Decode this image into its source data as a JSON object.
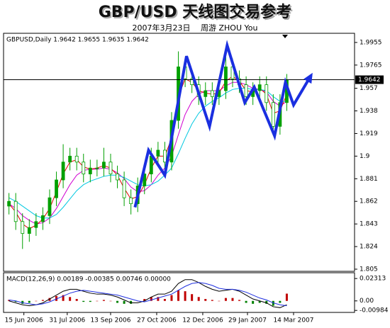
{
  "chart_data": {
    "type": "candlestick",
    "title": "GBP/USD 天线图交易参考",
    "subtitle": "2007年3月23日　 周游 ZHOU You",
    "header": "GBPUSD,Daily 1.9642 1.9655 1.9635 1.9642",
    "xlim": [
      -4,
      255
    ],
    "xticks": [
      {
        "value": 11,
        "label": "15 Jun 2006"
      },
      {
        "value": 43,
        "label": "31 Jul 2006"
      },
      {
        "value": 75,
        "label": "13 Sep 2006"
      },
      {
        "value": 109,
        "label": "27 Oct 2006"
      },
      {
        "value": 143,
        "label": "12 Dec 2006"
      },
      {
        "value": 176,
        "label": "29 Jan 2007"
      },
      {
        "value": 210,
        "label": "14 Mar 2007"
      }
    ],
    "ylim": [
      1.8032,
      2.0032
    ],
    "yticks": [
      1.9955,
      1.9765,
      1.957,
      1.938,
      1.919,
      1.9,
      1.881,
      1.862,
      1.843,
      1.824,
      1.805
    ],
    "last_price": 1.9642,
    "up_color": "#00a000",
    "down_color": "#ffffff",
    "x": [
      0,
      5,
      10,
      15,
      20,
      25,
      30,
      35,
      40,
      45,
      50,
      55,
      60,
      65,
      70,
      75,
      80,
      85,
      90,
      95,
      100,
      105,
      110,
      115,
      120,
      125,
      130,
      135,
      140,
      145,
      150,
      155,
      160,
      165,
      170,
      175,
      180,
      185,
      190,
      195,
      200,
      205
    ],
    "open": [
      1.858,
      1.862,
      1.845,
      1.835,
      1.84,
      1.845,
      1.85,
      1.865,
      1.88,
      1.895,
      1.9,
      1.895,
      1.885,
      1.89,
      1.89,
      1.895,
      1.885,
      1.88,
      1.865,
      1.86,
      1.875,
      1.885,
      1.9,
      1.905,
      1.895,
      1.93,
      1.975,
      1.965,
      1.96,
      1.95,
      1.955,
      1.95,
      1.955,
      1.975,
      1.965,
      1.96,
      1.95,
      1.955,
      1.96,
      1.945,
      1.925,
      1.945
    ],
    "high": [
      1.869,
      1.869,
      1.852,
      1.847,
      1.852,
      1.857,
      1.872,
      1.887,
      1.91,
      1.907,
      1.907,
      1.902,
      1.897,
      1.897,
      1.907,
      1.902,
      1.892,
      1.887,
      1.872,
      1.882,
      1.892,
      1.907,
      1.912,
      1.912,
      1.937,
      1.988,
      1.982,
      1.972,
      1.967,
      1.962,
      1.962,
      1.962,
      1.984,
      1.982,
      1.972,
      1.967,
      1.962,
      1.967,
      1.967,
      1.952,
      1.952,
      1.969
    ],
    "low": [
      1.851,
      1.838,
      1.822,
      1.828,
      1.833,
      1.838,
      1.843,
      1.858,
      1.873,
      1.888,
      1.888,
      1.878,
      1.878,
      1.883,
      1.883,
      1.878,
      1.873,
      1.858,
      1.851,
      1.853,
      1.868,
      1.878,
      1.893,
      1.888,
      1.888,
      1.923,
      1.958,
      1.953,
      1.943,
      1.943,
      1.943,
      1.943,
      1.948,
      1.958,
      1.953,
      1.943,
      1.943,
      1.948,
      1.938,
      1.918,
      1.918,
      1.938
    ],
    "close": [
      1.862,
      1.845,
      1.835,
      1.84,
      1.845,
      1.85,
      1.865,
      1.88,
      1.895,
      1.9,
      1.895,
      1.885,
      1.89,
      1.89,
      1.895,
      1.885,
      1.88,
      1.865,
      1.86,
      1.875,
      1.885,
      1.9,
      1.905,
      1.895,
      1.93,
      1.975,
      1.965,
      1.96,
      1.95,
      1.955,
      1.95,
      1.955,
      1.975,
      1.965,
      1.96,
      1.95,
      1.955,
      1.96,
      1.945,
      1.925,
      1.945,
      1.964
    ],
    "overlays": [
      {
        "color": "#d000d0",
        "values": [
          1.86,
          1.856,
          1.85,
          1.846,
          1.843,
          1.844,
          1.848,
          1.856,
          1.866,
          1.876,
          1.884,
          1.888,
          1.889,
          1.889,
          1.89,
          1.889,
          1.886,
          1.881,
          1.874,
          1.87,
          1.871,
          1.876,
          1.884,
          1.89,
          1.9,
          1.918,
          1.935,
          1.946,
          1.952,
          1.955,
          1.955,
          1.955,
          1.959,
          1.962,
          1.962,
          1.96,
          1.957,
          1.956,
          1.954,
          1.946,
          1.942,
          1.946
        ]
      },
      {
        "color": "#e00000",
        "values": [
          1.86,
          1.853,
          1.843,
          1.839,
          1.842,
          1.847,
          1.856,
          1.87,
          1.885,
          1.895,
          1.897,
          1.891,
          1.889,
          1.89,
          1.892,
          1.89,
          1.884,
          1.873,
          1.864,
          1.866,
          1.876,
          1.89,
          1.9,
          1.9,
          1.915,
          1.95,
          1.965,
          1.962,
          1.955,
          1.953,
          1.952,
          1.953,
          1.963,
          1.967,
          1.963,
          1.955,
          1.954,
          1.957,
          1.952,
          1.936,
          1.938,
          1.952
        ]
      },
      {
        "color": "#00c8e0",
        "values": [
          1.865,
          1.862,
          1.858,
          1.854,
          1.85,
          1.848,
          1.848,
          1.851,
          1.857,
          1.864,
          1.871,
          1.876,
          1.879,
          1.881,
          1.883,
          1.884,
          1.884,
          1.882,
          1.879,
          1.876,
          1.875,
          1.876,
          1.879,
          1.884,
          1.89,
          1.902,
          1.915,
          1.927,
          1.936,
          1.942,
          1.946,
          1.949,
          1.953,
          1.956,
          1.957,
          1.957,
          1.956,
          1.956,
          1.955,
          1.95,
          1.946,
          1.946
        ]
      }
    ],
    "arrow": {
      "color": "#1a2fe0",
      "x": [
        93,
        103,
        115,
        131,
        148,
        161,
        174,
        181,
        196,
        204,
        210,
        223
      ],
      "values": [
        1.857,
        1.905,
        1.884,
        1.984,
        1.925,
        1.993,
        1.945,
        1.958,
        1.917,
        1.962,
        1.943,
        1.968
      ]
    },
    "macd": {
      "header": "MACD(12,26,9) 0.00189 -0.00385 0.00746 0.00000",
      "ylim": [
        -0.0119,
        0.0291
      ],
      "yticks": [
        0.02313,
        {
          "value": 0,
          "label": "0.00"
        },
        -0.00984
      ],
      "up_color": "#c00000",
      "down_color": "#008000",
      "histogram": [
        0.001,
        -0.001,
        -0.003,
        -0.002,
        0.0,
        0.001,
        0.003,
        0.005,
        0.006,
        0.004,
        0.002,
        -0.001,
        -0.001,
        0.0,
        0.001,
        0.0,
        -0.002,
        -0.003,
        -0.003,
        0.0,
        0.002,
        0.004,
        0.004,
        0.002,
        0.006,
        0.011,
        0.01,
        0.007,
        0.004,
        0.002,
        0.001,
        0.0,
        0.003,
        0.003,
        0.001,
        -0.002,
        -0.003,
        -0.002,
        -0.003,
        -0.005,
        -0.002,
        0.0075
      ],
      "lines": [
        {
          "color": "#000000",
          "values": [
            0.0,
            -0.002,
            -0.004,
            -0.005,
            -0.004,
            -0.002,
            0.002,
            0.006,
            0.01,
            0.012,
            0.012,
            0.01,
            0.008,
            0.007,
            0.007,
            0.006,
            0.004,
            0.001,
            -0.002,
            -0.002,
            0.0,
            0.004,
            0.007,
            0.007,
            0.01,
            0.018,
            0.022,
            0.022,
            0.019,
            0.015,
            0.012,
            0.01,
            0.011,
            0.012,
            0.01,
            0.006,
            0.002,
            0.0,
            -0.002,
            -0.006,
            -0.007,
            -0.004
          ]
        },
        {
          "color": "#2030e0",
          "values": [
            0.001,
            0.0,
            -0.002,
            -0.003,
            -0.004,
            -0.003,
            -0.001,
            0.002,
            0.005,
            0.008,
            0.01,
            0.011,
            0.01,
            0.009,
            0.008,
            0.007,
            0.006,
            0.004,
            0.002,
            0.0,
            -0.001,
            0.001,
            0.003,
            0.005,
            0.007,
            0.011,
            0.015,
            0.018,
            0.019,
            0.018,
            0.016,
            0.013,
            0.012,
            0.012,
            0.011,
            0.009,
            0.006,
            0.003,
            0.001,
            -0.002,
            -0.004,
            -0.005
          ]
        }
      ]
    }
  }
}
